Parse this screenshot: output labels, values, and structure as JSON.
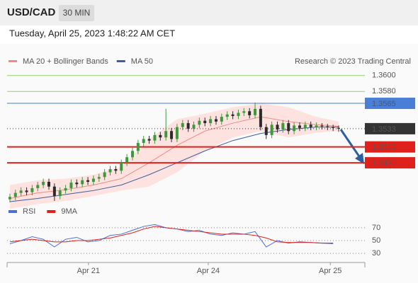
{
  "header": {
    "symbol": "USD/CAD",
    "timeframe": "30 MIN",
    "timestamp": "Tuesday, April 25, 2023 1:48:22 AM CET"
  },
  "chart_data": [
    {
      "type": "candlestick",
      "credit": "Research © 2023 Trading Central",
      "up_color": "#3c9a3c",
      "down_color": "#2b2b2b",
      "xlim": [
        -0.5,
        63.7
      ],
      "ylim": [
        1.3441,
        1.3615
      ],
      "open": [
        1.3444,
        1.3447,
        1.3452,
        1.3455,
        1.3453,
        1.3458,
        1.3462,
        1.3466,
        1.346,
        1.3448,
        1.3455,
        1.3458,
        1.3465,
        1.3463,
        1.3468,
        1.3466,
        1.347,
        1.3472,
        1.3478,
        1.3482,
        1.348,
        1.349,
        1.3497,
        1.3505,
        1.3515,
        1.352,
        1.3518,
        1.3525,
        1.3522,
        1.353,
        1.352,
        1.3535,
        1.354,
        1.3533,
        1.3538,
        1.3543,
        1.354,
        1.3545,
        1.3542,
        1.3548,
        1.3551,
        1.3549,
        1.3553,
        1.3555,
        1.355,
        1.3558,
        1.3535,
        1.3525,
        1.3538,
        1.3532,
        1.354,
        1.353,
        1.3537,
        1.3534,
        1.3538,
        1.3535,
        1.3537,
        1.3536,
        1.3535,
        1.3534
      ],
      "high": [
        1.3451,
        1.3456,
        1.3459,
        1.3459,
        1.3462,
        1.3466,
        1.347,
        1.347,
        1.3464,
        1.3459,
        1.3462,
        1.3469,
        1.3469,
        1.3472,
        1.3472,
        1.3474,
        1.3476,
        1.3482,
        1.3486,
        1.3486,
        1.3494,
        1.3501,
        1.3509,
        1.3519,
        1.3524,
        1.3524,
        1.3529,
        1.3529,
        1.3558,
        1.3534,
        1.3539,
        1.3544,
        1.3544,
        1.3542,
        1.3547,
        1.3547,
        1.3549,
        1.3549,
        1.3552,
        1.3555,
        1.3555,
        1.3557,
        1.3559,
        1.3559,
        1.3566,
        1.3562,
        1.3539,
        1.3542,
        1.3542,
        1.3544,
        1.3544,
        1.3541,
        1.3541,
        1.3542,
        1.3542,
        1.3541,
        1.354,
        1.3539,
        1.3538,
        1.3537
      ],
      "low": [
        1.344,
        1.3443,
        1.3448,
        1.3449,
        1.3449,
        1.3454,
        1.3458,
        1.3456,
        1.3442,
        1.3444,
        1.3451,
        1.3454,
        1.3459,
        1.3459,
        1.3462,
        1.3462,
        1.3466,
        1.3468,
        1.3474,
        1.3476,
        1.3476,
        1.3486,
        1.3493,
        1.3501,
        1.3511,
        1.3514,
        1.3514,
        1.3518,
        1.3518,
        1.3516,
        1.3516,
        1.3531,
        1.3529,
        1.3529,
        1.3534,
        1.3536,
        1.3536,
        1.3538,
        1.3538,
        1.3544,
        1.3545,
        1.3545,
        1.3549,
        1.3546,
        1.3546,
        1.3531,
        1.352,
        1.3521,
        1.3528,
        1.3528,
        1.3526,
        1.3526,
        1.353,
        1.353,
        1.3531,
        1.3531,
        1.3532,
        1.3531,
        1.353,
        1.3529
      ],
      "close": [
        1.3447,
        1.3452,
        1.3455,
        1.3453,
        1.3458,
        1.3462,
        1.3466,
        1.346,
        1.3448,
        1.3455,
        1.3458,
        1.3465,
        1.3463,
        1.3468,
        1.3466,
        1.347,
        1.3472,
        1.3478,
        1.3482,
        1.348,
        1.349,
        1.3497,
        1.3505,
        1.3515,
        1.352,
        1.3518,
        1.3525,
        1.3522,
        1.353,
        1.352,
        1.3535,
        1.354,
        1.3533,
        1.3538,
        1.3543,
        1.354,
        1.3545,
        1.3542,
        1.3548,
        1.3551,
        1.3549,
        1.3553,
        1.3555,
        1.355,
        1.3558,
        1.3535,
        1.3525,
        1.3538,
        1.3532,
        1.354,
        1.353,
        1.3537,
        1.3534,
        1.3538,
        1.3535,
        1.3537,
        1.3536,
        1.3535,
        1.3534,
        1.3533
      ],
      "overlays": [
        {
          "name": "MA 20 + Bollinger Bands",
          "color": "#f08a84",
          "band_color": "#fde2e0",
          "x": [
            0,
            5,
            10,
            15,
            20,
            25,
            30,
            35,
            40,
            45,
            50,
            55,
            59
          ],
          "values": [
            1.3445,
            1.3452,
            1.3456,
            1.3462,
            1.347,
            1.349,
            1.3512,
            1.353,
            1.354,
            1.3548,
            1.3542,
            1.3538,
            1.3536
          ],
          "upper": [
            1.3462,
            1.3468,
            1.347,
            1.3475,
            1.3485,
            1.352,
            1.3545,
            1.3552,
            1.356,
            1.3565,
            1.356,
            1.3548,
            1.3542
          ],
          "lower": [
            1.3432,
            1.3438,
            1.3442,
            1.3448,
            1.3455,
            1.346,
            1.3478,
            1.3505,
            1.3522,
            1.353,
            1.3522,
            1.3528,
            1.353
          ]
        },
        {
          "name": "MA 50",
          "color": "#3a5fa0",
          "x": [
            0,
            5,
            10,
            15,
            20,
            25,
            30,
            35,
            40,
            45,
            50,
            55,
            59
          ],
          "values": [
            1.3441,
            1.3445,
            1.345,
            1.3455,
            1.3462,
            1.3475,
            1.349,
            1.3505,
            1.3518,
            1.3527,
            1.3532,
            1.3535,
            1.3535
          ]
        }
      ],
      "levels": [
        {
          "value": 1.36,
          "label": "1.3600",
          "color": "#8fcf6a",
          "style": "thin"
        },
        {
          "value": 1.358,
          "label": "1.3580",
          "color": "#8fcf6a",
          "style": "thin"
        },
        {
          "value": 1.3565,
          "label": "1.3565",
          "color": "#4a7fd8",
          "style": "box"
        },
        {
          "value": 1.3533,
          "label": "1.3533",
          "color": "#333333",
          "style": "dotted"
        },
        {
          "value": 1.351,
          "label": "1.3510",
          "color": "#e0201b",
          "style": "bold"
        },
        {
          "value": 1.349,
          "label": "1.3490",
          "color": "#e0201b",
          "style": "bold"
        }
      ]
    },
    {
      "type": "line",
      "ylim": [
        18,
        82
      ],
      "yticks": [
        70,
        50,
        30
      ],
      "xticks": [
        {
          "value": 14.1,
          "label": "Apr 21"
        },
        {
          "value": 35.6,
          "label": "Apr 24"
        },
        {
          "value": 57.5,
          "label": "Apr 25"
        }
      ],
      "x": [
        0,
        2,
        4,
        6,
        8,
        10,
        12,
        14,
        16,
        18,
        20,
        22,
        24,
        26,
        28,
        30,
        32,
        34,
        36,
        38,
        40,
        42,
        44,
        46,
        48,
        50,
        52,
        54,
        56,
        58
      ],
      "series": [
        {
          "name": "RSI",
          "color": "#4a6fd8",
          "values": [
            45,
            50,
            56,
            52,
            40,
            52,
            55,
            48,
            50,
            58,
            60,
            66,
            72,
            75,
            70,
            68,
            64,
            66,
            60,
            58,
            62,
            60,
            64,
            40,
            50,
            46,
            48,
            47,
            46,
            45
          ]
        },
        {
          "name": "9MA",
          "color": "#e0201b",
          "values": [
            48,
            50,
            52,
            50,
            48,
            48,
            50,
            50,
            52,
            54,
            58,
            62,
            68,
            72,
            70,
            68,
            66,
            64,
            62,
            60,
            60,
            60,
            58,
            54,
            48,
            47,
            47,
            47,
            46,
            46
          ]
        }
      ]
    }
  ]
}
